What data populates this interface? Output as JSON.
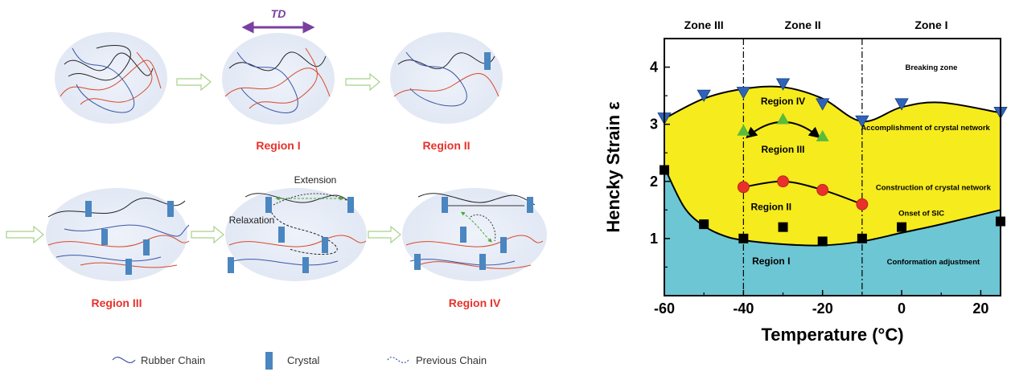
{
  "schematic": {
    "td_label": "TD",
    "regions": [
      "Region I",
      "Region II",
      "Region III",
      "Region IV"
    ],
    "annotations": {
      "extension": "Extension",
      "relaxation": "Relaxation"
    },
    "legend": [
      {
        "label": "Rubber Chain",
        "icon": "wavy-line-icon"
      },
      {
        "label": "Crystal",
        "icon": "crystal-block-icon"
      },
      {
        "label": "Previous Chain",
        "icon": "dashed-wavy-line-icon"
      }
    ],
    "colors": {
      "rubber_blue": "#3a56a8",
      "rubber_red": "#d9482a",
      "rubber_black": "#222222",
      "crystal": "#4a86c0",
      "arrow": "#c9e3a8",
      "td_arrow": "#7a3fa0",
      "bubble": "#e8edf7"
    }
  },
  "chart_data": {
    "type": "scatter",
    "xlabel": "Temperature (°C)",
    "ylabel": "Hencky Strain ε",
    "xlim": [
      -60,
      25
    ],
    "ylim": [
      0,
      4.5
    ],
    "xticks": [
      "-60",
      "-40",
      "-20",
      "0",
      "20"
    ],
    "yticks": [
      "1",
      "2",
      "3",
      "4"
    ],
    "zones": [
      {
        "label": "Zone III",
        "x": -50
      },
      {
        "label": "Zone II",
        "x": -25
      },
      {
        "label": "Zone I",
        "x": 7.5
      }
    ],
    "zone_boundaries": [
      -40,
      -10
    ],
    "region_labels": [
      {
        "label": "Region IV",
        "x": -30,
        "y": 3.35
      },
      {
        "label": "Region III",
        "x": -30,
        "y": 2.5
      },
      {
        "label": "Region II",
        "x": -33,
        "y": 1.5
      },
      {
        "label": "Region I",
        "x": -33,
        "y": 0.55
      }
    ],
    "annotations": [
      {
        "label": "Breaking zone",
        "x": 7.5,
        "y": 3.95
      },
      {
        "label": "Accomplishment of crystal network",
        "x": 6,
        "y": 2.9
      },
      {
        "label": "Construction of crystal network",
        "x": 8,
        "y": 1.85
      },
      {
        "label": "Onset of SIC",
        "x": 5,
        "y": 1.4
      },
      {
        "label": "Conformation adjustment",
        "x": 8,
        "y": 0.55
      }
    ],
    "series": [
      {
        "marker": "triangle-down",
        "color": "#2e63b8",
        "x": [
          -60,
          -50,
          -40,
          -30,
          -20,
          -10,
          0,
          25
        ],
        "y": [
          3.1,
          3.5,
          3.55,
          3.7,
          3.35,
          3.05,
          3.35,
          3.2
        ]
      },
      {
        "marker": "triangle-up",
        "color": "#5bbb3a",
        "x": [
          -40,
          -30,
          -20
        ],
        "y": [
          2.9,
          3.1,
          2.8
        ]
      },
      {
        "marker": "circle",
        "color": "#e8312a",
        "x": [
          -40,
          -30,
          -20,
          -10
        ],
        "y": [
          1.9,
          2.0,
          1.85,
          1.6
        ]
      },
      {
        "marker": "square",
        "color": "#000000",
        "x": [
          -60,
          -50,
          -40,
          -30,
          -20,
          -10,
          0,
          25
        ],
        "y": [
          2.2,
          1.25,
          1.0,
          1.2,
          0.95,
          1.0,
          1.2,
          1.3
        ]
      }
    ],
    "boundary_upper": {
      "x": [
        -60,
        -50,
        -40,
        -30,
        -20,
        -10,
        0,
        10,
        25
      ],
      "y": [
        3.1,
        3.45,
        3.62,
        3.65,
        3.45,
        3.05,
        3.3,
        3.38,
        3.2
      ]
    },
    "boundary_lower": {
      "x": [
        -60,
        -55,
        -50,
        -45,
        -40,
        -30,
        -20,
        -10,
        0,
        10,
        25
      ],
      "y": [
        2.25,
        1.55,
        1.22,
        1.05,
        0.97,
        0.9,
        0.88,
        0.95,
        1.1,
        1.25,
        1.5
      ]
    },
    "colors": {
      "yellow": "#f6eb1d",
      "cyan": "#6cc6d4",
      "white": "#ffffff"
    }
  }
}
